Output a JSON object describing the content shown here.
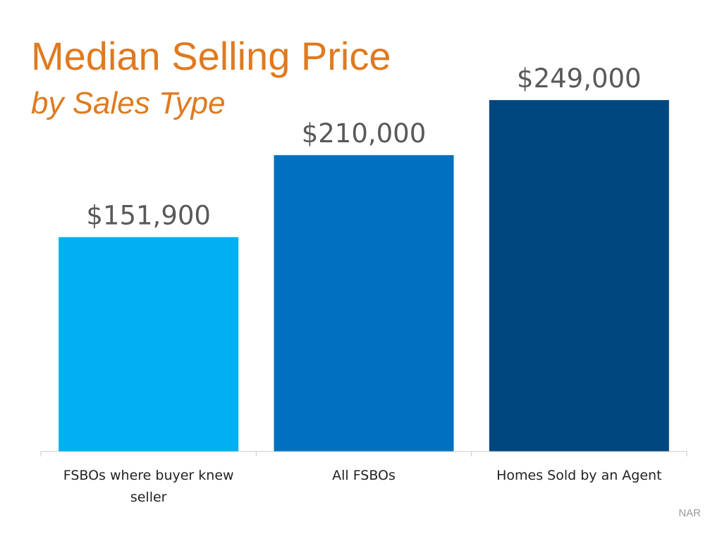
{
  "title": "Median Selling Price",
  "subtitle": "by Sales Type",
  "source": "NAR",
  "chart_data": {
    "type": "bar",
    "categories": [
      "FSBOs where buyer knew seller",
      "All FSBOs",
      "Homes Sold by an Agent"
    ],
    "values": [
      151900,
      210000,
      249000
    ],
    "data_labels": [
      "$151,900",
      "$210,000",
      "$249,000"
    ],
    "colors": [
      "#00B0F0",
      "#0070C0",
      "#00467F"
    ],
    "ylim": [
      0,
      270000
    ],
    "grid": false,
    "legend": "none"
  }
}
